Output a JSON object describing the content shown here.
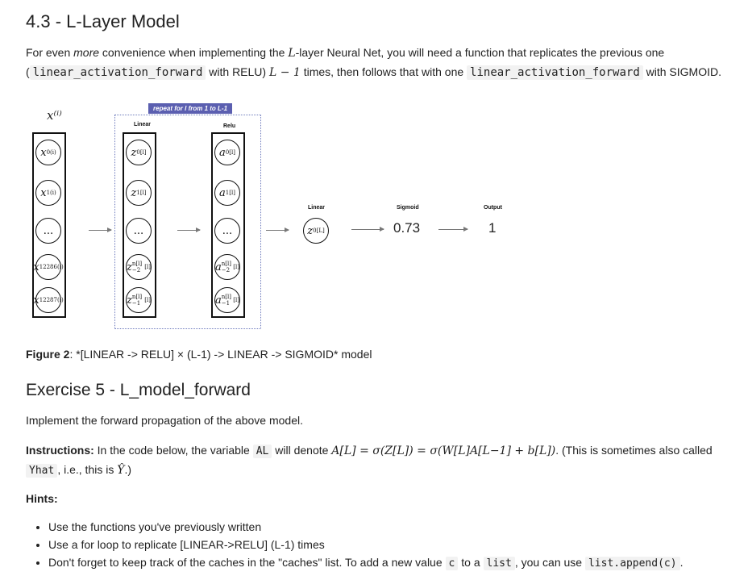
{
  "section_title": "4.3 - L-Layer Model",
  "intro": {
    "part1": "For even ",
    "part1_em": "more",
    "part2": " convenience when implementing the ",
    "math_L": "L",
    "part3": "-layer Neural Net, you will need a function that replicates the previous one",
    "line2_open": "(",
    "code1": "linear_activation_forward",
    "part4": " with RELU) ",
    "math_Lminus1": "L − 1",
    "part5": " times, then follows that with one ",
    "code2": "linear_activation_forward",
    "part6": " with SIGMOID."
  },
  "figure": {
    "input_label": "x⁽ⁱ⁾",
    "banner": "repeat for l from 1 to L-1",
    "linear_label": "Linear",
    "relu_label": "Relu",
    "final_linear_label": "Linear",
    "sigmoid_label": "Sigmoid",
    "output_label": "Output",
    "input_nodes": [
      "x",
      "x",
      "...",
      "x",
      "x"
    ],
    "input_subs": [
      "0",
      "1",
      "",
      "12286",
      "12287"
    ],
    "input_sups": [
      "(i)",
      "(i)",
      "",
      "(i)",
      "(i)"
    ],
    "z_nodes": [
      "z",
      "z",
      "...",
      "z",
      "z"
    ],
    "z_subs": [
      "0",
      "1",
      "",
      "n[l]−2",
      "n[l]−1"
    ],
    "a_nodes": [
      "a",
      "a",
      "...",
      "a",
      "a"
    ],
    "a_subs": [
      "0",
      "1",
      "",
      "n[l]−2",
      "n[l]−1"
    ],
    "layer_sup": "[l]",
    "final_z": "z",
    "final_z_sup": "[L]",
    "final_z_sub": "0",
    "sigmoid_value": "0.73",
    "output_value": "1",
    "caption_bold": "Figure 2",
    "caption_rest": ": *[LINEAR -> RELU] × (L-1) -> LINEAR -> SIGMOID* model"
  },
  "exercise_title": "Exercise 5 - L_model_forward",
  "exercise_text": "Implement the forward propagation of the above model.",
  "instructions": {
    "bold": "Instructions:",
    "text1": " In the code below, the variable ",
    "code_AL": "AL",
    "text2": " will denote ",
    "formula": "A[L] = σ(Z[L]) = σ(W[L]A[L−1] + b[L])",
    "text3": ". (This is sometimes also called",
    "code_Yhat": "Yhat",
    "text4": ", i.e., this is ",
    "math_Yhat": "Ŷ",
    "text5": ".)"
  },
  "hints_label": "Hints:",
  "hints": {
    "item1": "Use the functions you've previously written",
    "item2": "Use a for loop to replicate [LINEAR->RELU] (L-1) times",
    "item3_a": "Don't forget to keep track of the caches in the \"caches\" list. To add a new value ",
    "item3_code1": "c",
    "item3_b": " to a ",
    "item3_code2": "list",
    "item3_c": ", you can use ",
    "item3_code3": "list.append(c)",
    "item3_d": "."
  }
}
